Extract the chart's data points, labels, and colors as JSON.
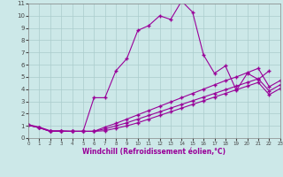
{
  "background_color": "#cce8e8",
  "grid_color": "#aacccc",
  "line_color": "#990099",
  "xlabel": "Windchill (Refroidissement éolien,°C)",
  "xlim": [
    0,
    23
  ],
  "ylim": [
    0,
    11
  ],
  "xticks": [
    0,
    1,
    2,
    3,
    4,
    5,
    6,
    7,
    8,
    9,
    10,
    11,
    12,
    13,
    14,
    15,
    16,
    17,
    18,
    19,
    20,
    21,
    22,
    23
  ],
  "yticks": [
    0,
    1,
    2,
    3,
    4,
    5,
    6,
    7,
    8,
    9,
    10,
    11
  ],
  "line1_x": [
    0,
    1,
    2,
    3,
    4,
    5,
    6,
    7,
    8,
    9,
    10,
    11,
    12,
    13,
    14,
    15,
    16,
    17,
    18,
    19,
    20,
    21,
    22
  ],
  "line1_y": [
    1.1,
    0.9,
    0.6,
    0.6,
    0.55,
    0.55,
    3.3,
    3.3,
    5.5,
    6.5,
    8.8,
    9.2,
    10.0,
    9.7,
    11.2,
    10.3,
    6.8,
    5.3,
    5.9,
    3.9,
    5.3,
    4.8,
    5.5
  ],
  "line2_x": [
    0,
    1,
    2,
    3,
    4,
    5,
    6,
    7,
    8,
    9,
    10,
    11,
    12,
    13,
    14,
    15,
    16,
    17,
    18,
    19,
    20,
    21,
    22,
    23
  ],
  "line2_y": [
    1.05,
    0.85,
    0.55,
    0.55,
    0.55,
    0.55,
    0.55,
    0.9,
    1.2,
    1.55,
    1.9,
    2.25,
    2.6,
    2.95,
    3.3,
    3.65,
    4.0,
    4.35,
    4.7,
    5.0,
    5.35,
    5.7,
    4.2,
    4.7
  ],
  "line3_x": [
    0,
    1,
    2,
    3,
    4,
    5,
    6,
    7,
    8,
    9,
    10,
    11,
    12,
    13,
    14,
    15,
    16,
    17,
    18,
    19,
    20,
    21,
    22,
    23
  ],
  "line3_y": [
    1.05,
    0.85,
    0.55,
    0.55,
    0.55,
    0.55,
    0.55,
    0.75,
    1.0,
    1.25,
    1.55,
    1.85,
    2.15,
    2.45,
    2.75,
    3.05,
    3.35,
    3.65,
    3.95,
    4.25,
    4.55,
    4.85,
    3.85,
    4.35
  ],
  "line4_x": [
    0,
    1,
    2,
    3,
    4,
    5,
    6,
    7,
    8,
    9,
    10,
    11,
    12,
    13,
    14,
    15,
    16,
    17,
    18,
    19,
    20,
    21,
    22,
    23
  ],
  "line4_y": [
    1.05,
    0.85,
    0.55,
    0.55,
    0.55,
    0.55,
    0.55,
    0.6,
    0.8,
    1.0,
    1.25,
    1.55,
    1.85,
    2.15,
    2.45,
    2.75,
    3.05,
    3.35,
    3.65,
    3.95,
    4.25,
    4.55,
    3.55,
    4.05
  ]
}
